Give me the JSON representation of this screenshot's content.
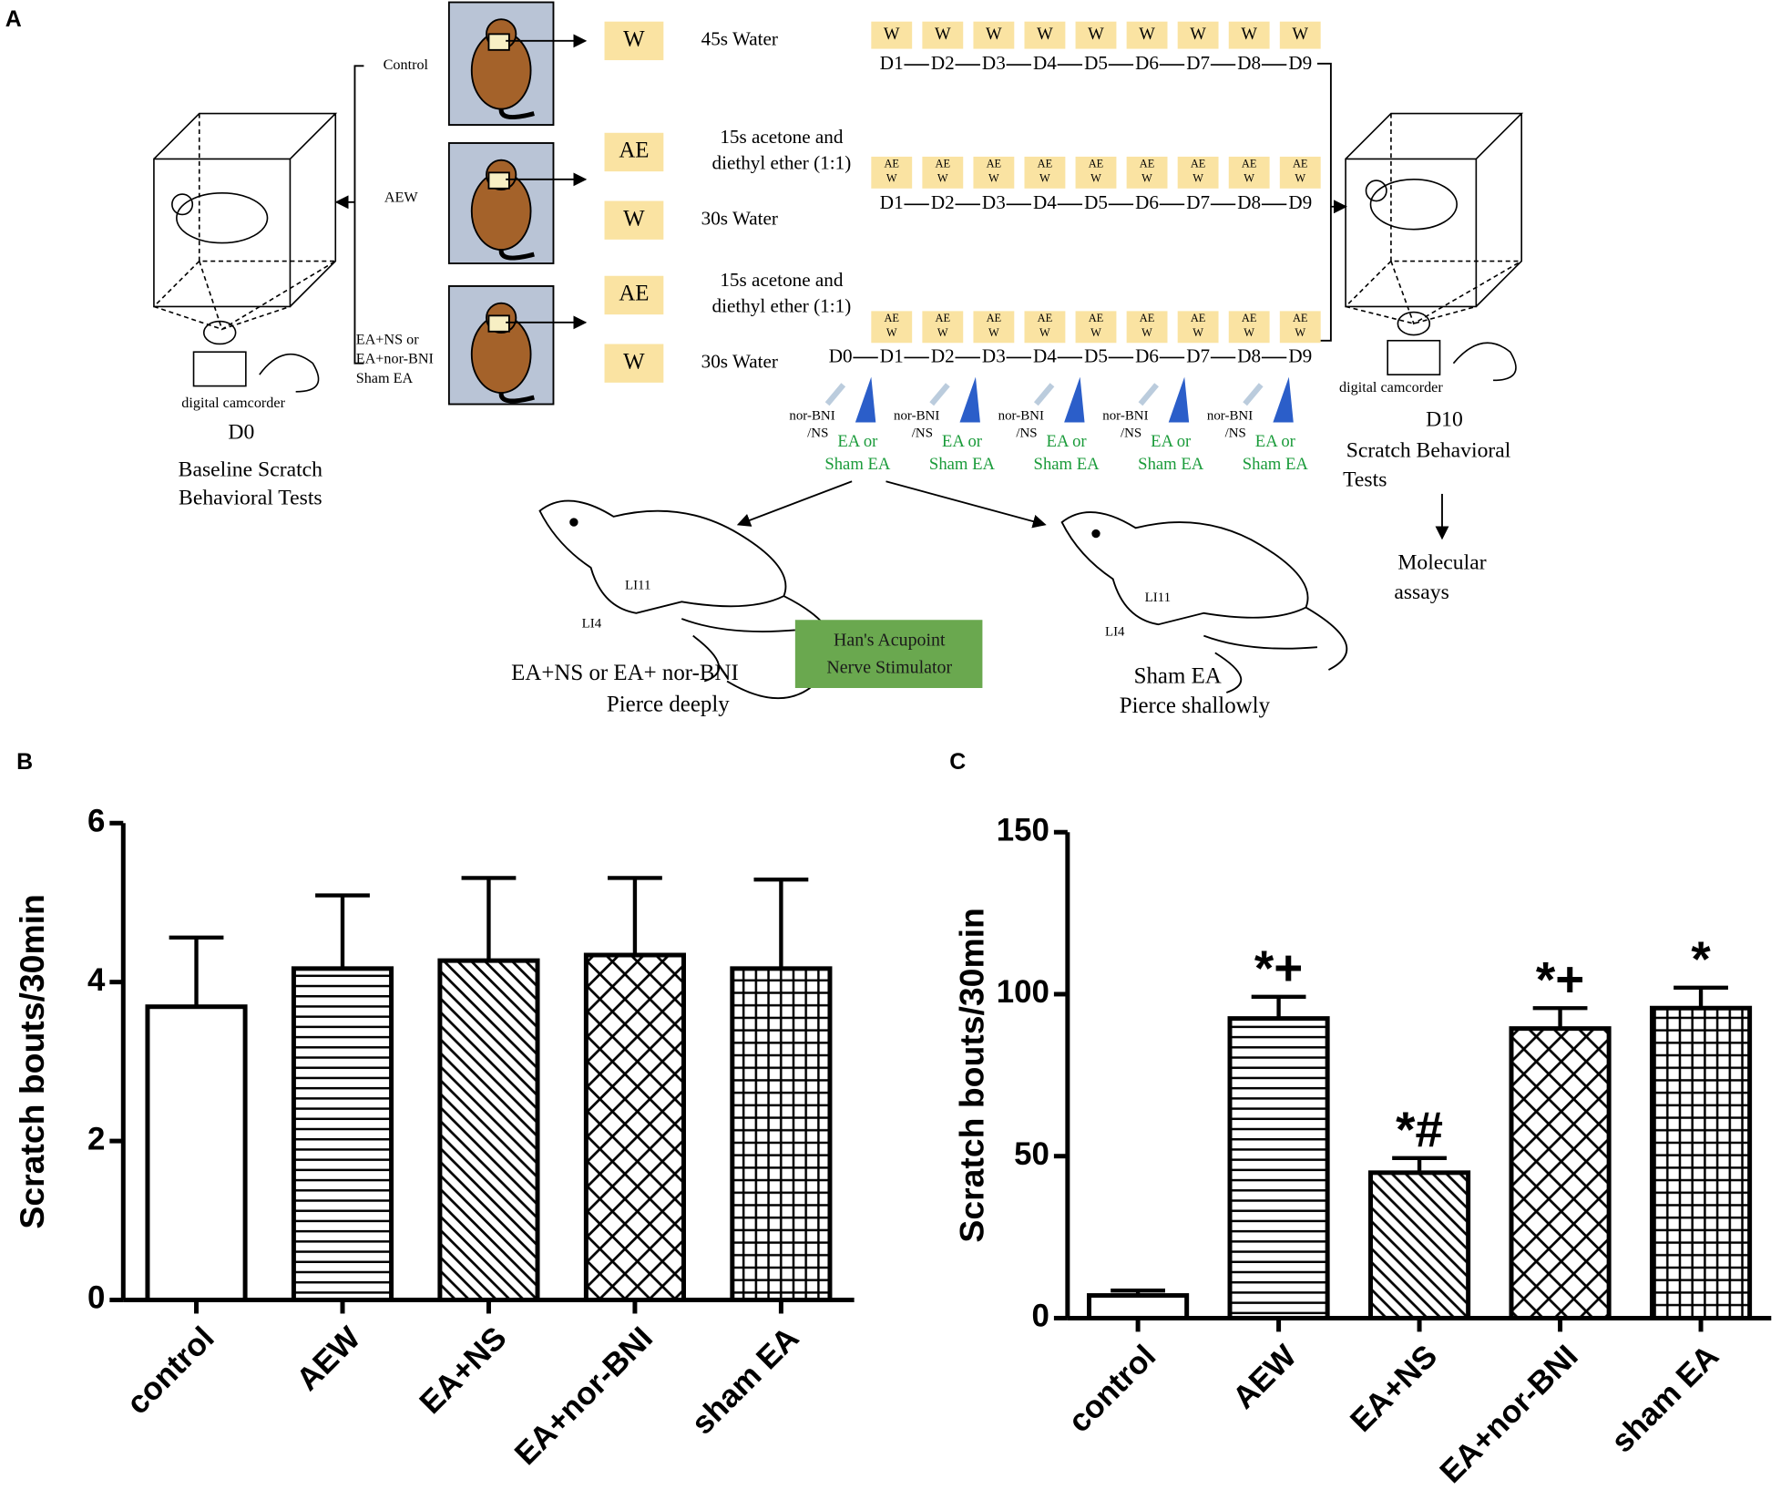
{
  "diagram": {
    "panel_label": "A",
    "groups": [
      [
        "Control"
      ],
      [
        "AEW"
      ],
      [
        "EA+NS or",
        "EA+nor-BNI",
        "Sham EA"
      ]
    ],
    "treatments": [
      {
        "box": "W",
        "text": [
          "45s Water"
        ]
      },
      {
        "box": "AE",
        "text": [
          "15s acetone and",
          "diethyl ether (1:1)"
        ]
      },
      {
        "box": "W",
        "text": [
          "30s Water"
        ]
      },
      {
        "box": "AE",
        "text": [
          "15s acetone and",
          "diethyl ether (1:1)"
        ]
      },
      {
        "box": "W",
        "text": [
          "30s Water"
        ]
      }
    ],
    "schedules": [
      {
        "boxes": [
          [
            "W"
          ],
          [
            "W"
          ],
          [
            "W"
          ],
          [
            "W"
          ],
          [
            "W"
          ],
          [
            "W"
          ],
          [
            "W"
          ],
          [
            "W"
          ],
          [
            "W"
          ]
        ],
        "days": [
          "D1",
          "D2",
          "D3",
          "D4",
          "D5",
          "D6",
          "D7",
          "D8",
          "D9"
        ]
      },
      {
        "boxes": [
          [
            "AE",
            "W"
          ],
          [
            "AE",
            "W"
          ],
          [
            "AE",
            "W"
          ],
          [
            "AE",
            "W"
          ],
          [
            "AE",
            "W"
          ],
          [
            "AE",
            "W"
          ],
          [
            "AE",
            "W"
          ],
          [
            "AE",
            "W"
          ],
          [
            "AE",
            "W"
          ]
        ],
        "days": [
          "D1",
          "D2",
          "D3",
          "D4",
          "D5",
          "D6",
          "D7",
          "D8",
          "D9"
        ]
      },
      {
        "boxes": [
          [
            "AE",
            "W"
          ],
          [
            "AE",
            "W"
          ],
          [
            "AE",
            "W"
          ],
          [
            "AE",
            "W"
          ],
          [
            "AE",
            "W"
          ],
          [
            "AE",
            "W"
          ],
          [
            "AE",
            "W"
          ],
          [
            "AE",
            "W"
          ],
          [
            "AE",
            "W"
          ]
        ],
        "days": [
          "D0",
          "D1",
          "D2",
          "D3",
          "D4",
          "D5",
          "D6",
          "D7",
          "D8",
          "D9"
        ]
      }
    ],
    "injections": [
      {
        "drug": [
          "nor-BNI",
          "/NS"
        ],
        "ea": [
          "EA or",
          "Sham EA"
        ]
      },
      {
        "drug": [
          "nor-BNI",
          "/NS"
        ],
        "ea": [
          "EA or",
          "Sham EA"
        ]
      },
      {
        "drug": [
          "nor-BNI",
          "/NS"
        ],
        "ea": [
          "EA or",
          "Sham EA"
        ]
      },
      {
        "drug": [
          "nor-BNI",
          "/NS"
        ],
        "ea": [
          "EA or",
          "Sham EA"
        ]
      },
      {
        "drug": [
          "nor-BNI",
          "/NS"
        ],
        "ea": [
          "EA or",
          "Sham EA"
        ]
      }
    ],
    "baseline": {
      "device": "digital camcorder",
      "day": "D0",
      "text": [
        "Baseline Scratch",
        "Behavioral Tests"
      ]
    },
    "final": {
      "device": "digital camcorder",
      "day": "D10",
      "text": [
        "Scratch Behavioral",
        "Tests"
      ]
    },
    "assays": [
      "Molecular",
      "assays"
    ],
    "ea_mouse": {
      "points": [
        "LI11",
        "LI4"
      ],
      "caption": [
        "EA+NS or EA+ nor-BNI",
        "Pierce deeply"
      ]
    },
    "stimulator": [
      "Han's Acupoint",
      "Nerve Stimulator"
    ],
    "sham_mouse": {
      "points": [
        "LI11",
        "LI4"
      ],
      "caption": [
        "Sham EA",
        "Pierce shallowly"
      ]
    }
  },
  "chart_data": [
    {
      "type": "bar",
      "panel_label": "B",
      "ylabel": "Scratch bouts/30min",
      "categories": [
        "control",
        "AEW",
        "EA+NS",
        "EA+nor-BNI",
        "sham  EA"
      ],
      "values": [
        3.69,
        4.17,
        4.27,
        4.34,
        4.17
      ],
      "errors": [
        0.87,
        0.92,
        1.04,
        0.97,
        1.12
      ],
      "ylim": [
        0,
        6
      ],
      "yticks": [
        0,
        2,
        4,
        6
      ],
      "patterns": [
        "none",
        "horizontal",
        "diagonal",
        "brick",
        "grid"
      ],
      "color": "#000000"
    },
    {
      "type": "bar",
      "panel_label": "C",
      "ylabel": "Scratch bouts/30min",
      "categories": [
        "control",
        "AEW",
        "EA+NS",
        "EA+nor-BNI",
        "sham EA"
      ],
      "values": [
        7,
        92.5,
        44.9,
        89.4,
        95.7
      ],
      "errors": [
        1.5,
        6.7,
        4.5,
        6.3,
        6.3
      ],
      "annotations": [
        null,
        "*+",
        "*#",
        "*+",
        "*"
      ],
      "ylim": [
        0,
        150
      ],
      "yticks": [
        0,
        50,
        100,
        150
      ],
      "patterns": [
        "none",
        "horizontal",
        "diagonal",
        "brick",
        "grid"
      ],
      "color": "#000000"
    }
  ]
}
